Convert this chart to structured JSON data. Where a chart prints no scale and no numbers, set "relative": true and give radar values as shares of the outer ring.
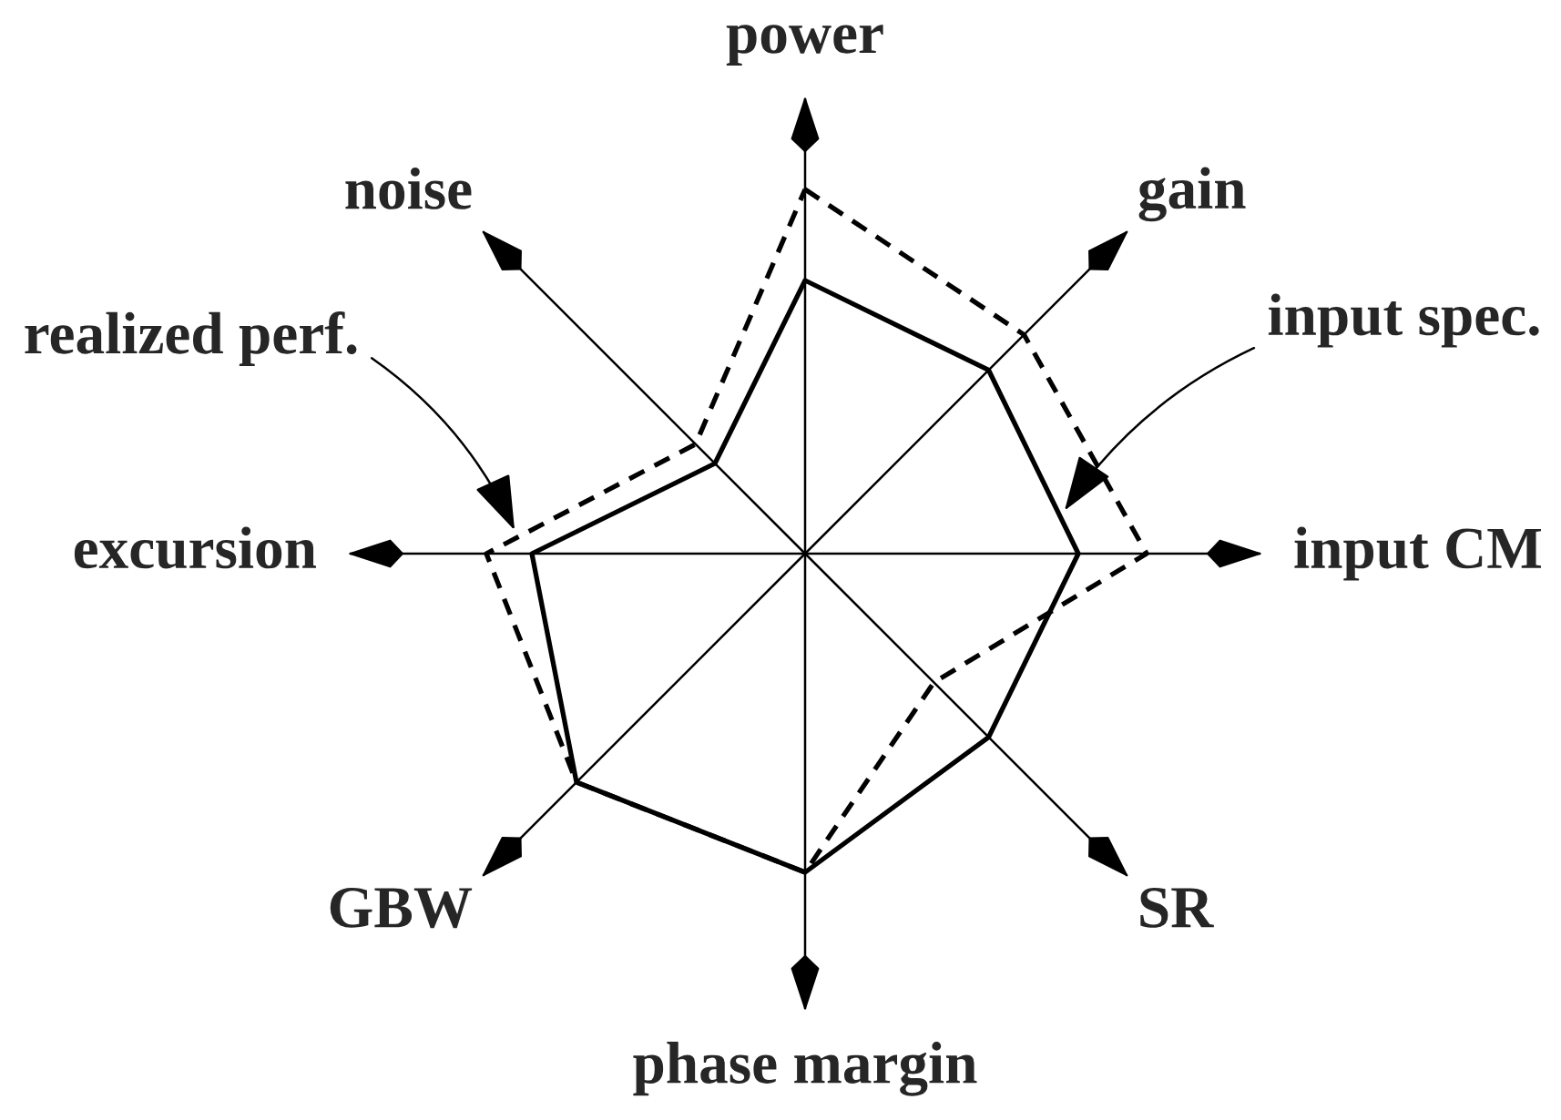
{
  "chart_data": {
    "type": "radar",
    "relative": true,
    "grid": "x",
    "categories": [
      "power",
      "gain",
      "input CM",
      "SR",
      "phase margin",
      "GBW",
      "excursion",
      "noise"
    ],
    "series": [
      {
        "name": "input spec.",
        "color": "#000000",
        "line_style": "solid",
        "values": [
          0.6,
          0.57,
          0.6,
          0.57,
          0.7,
          0.71,
          0.6,
          0.28
        ]
      },
      {
        "name": "realized perf.",
        "color": "#000000",
        "line_style": "dashed",
        "values": [
          0.8,
          0.68,
          0.75,
          0.4,
          0.7,
          0.71,
          0.7,
          0.34
        ]
      }
    ]
  }
}
